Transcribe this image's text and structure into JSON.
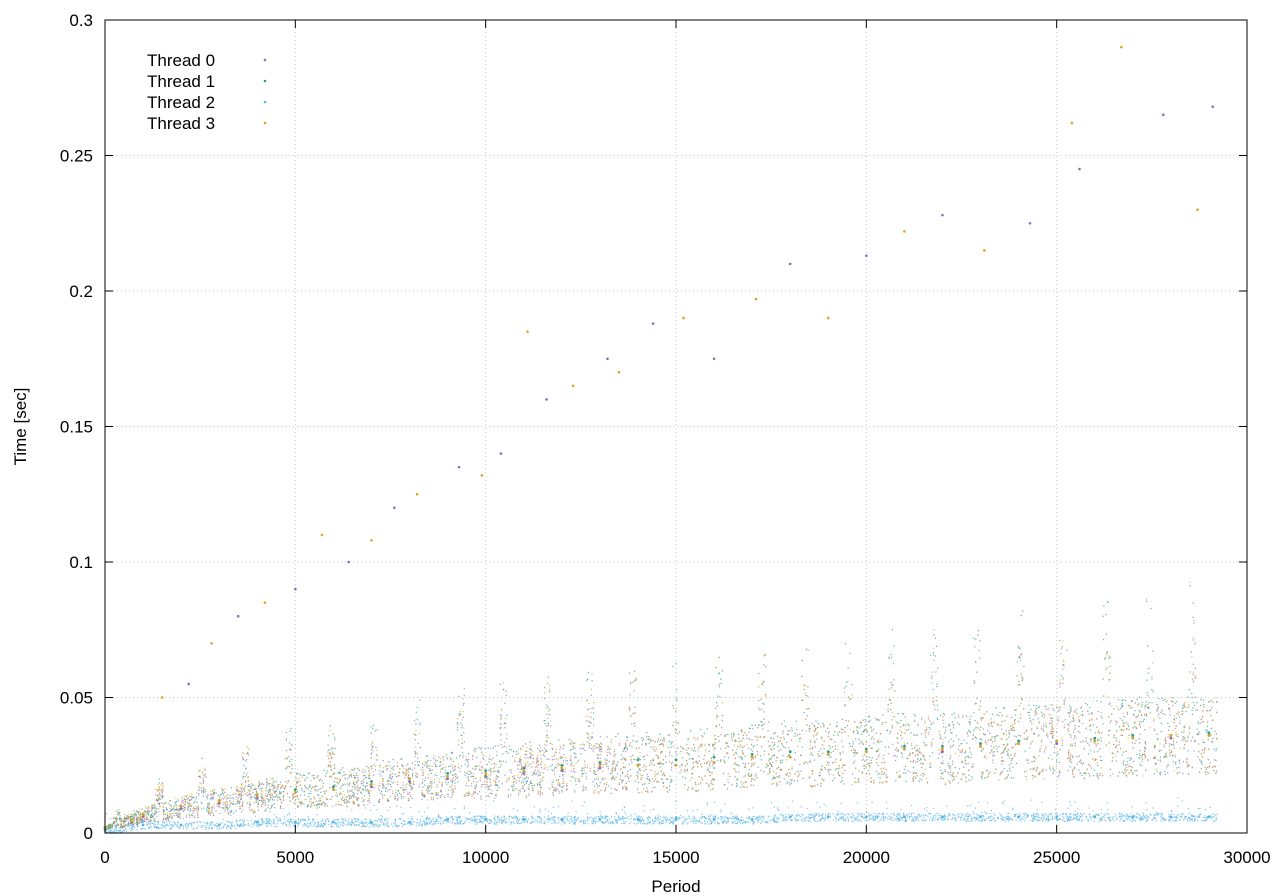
{
  "chart_data": {
    "type": "scatter",
    "xlabel": "Period",
    "ylabel": "Time [sec]",
    "xlim": [
      0,
      30000
    ],
    "ylim": [
      0,
      0.3
    ],
    "x_ticks": [
      0,
      5000,
      10000,
      15000,
      20000,
      25000,
      30000
    ],
    "x_tick_labels": [
      "0",
      "5000",
      "10000",
      "15000",
      "20000",
      "25000",
      "30000"
    ],
    "y_ticks": [
      0,
      0.05,
      0.1,
      0.15,
      0.2,
      0.25,
      0.3
    ],
    "y_tick_labels": [
      "0",
      "0.05",
      "0.1",
      "0.15",
      "0.2",
      "0.25",
      "0.3"
    ],
    "grid": true,
    "legend_position": "top-left",
    "series": [
      {
        "name": "Thread 0",
        "color": "#9467bd",
        "x": [
          0,
          1000,
          2000,
          3000,
          4000,
          5000,
          6000,
          7000,
          8000,
          9000,
          10000,
          11000,
          12000,
          13000,
          14000,
          15000,
          16000,
          17000,
          18000,
          19000,
          20000,
          21000,
          22000,
          23000,
          24000,
          25000,
          26000,
          27000,
          28000,
          29000
        ],
        "values": [
          0.002,
          0.006,
          0.009,
          0.011,
          0.013,
          0.015,
          0.016,
          0.017,
          0.019,
          0.02,
          0.021,
          0.022,
          0.023,
          0.024,
          0.025,
          0.025,
          0.026,
          0.028,
          0.028,
          0.029,
          0.03,
          0.031,
          0.03,
          0.032,
          0.033,
          0.033,
          0.034,
          0.035,
          0.035,
          0.036
        ]
      },
      {
        "name": "Thread 1",
        "color": "#2a9d8f",
        "x": [
          0,
          1000,
          2000,
          3000,
          4000,
          5000,
          6000,
          7000,
          8000,
          9000,
          10000,
          11000,
          12000,
          13000,
          14000,
          15000,
          16000,
          17000,
          18000,
          19000,
          20000,
          21000,
          22000,
          23000,
          24000,
          25000,
          26000,
          27000,
          28000,
          29000
        ],
        "values": [
          0.002,
          0.007,
          0.01,
          0.012,
          0.014,
          0.016,
          0.017,
          0.019,
          0.02,
          0.022,
          0.023,
          0.024,
          0.025,
          0.026,
          0.027,
          0.027,
          0.028,
          0.029,
          0.03,
          0.03,
          0.031,
          0.032,
          0.032,
          0.033,
          0.034,
          0.034,
          0.035,
          0.036,
          0.036,
          0.037
        ]
      },
      {
        "name": "Thread 2",
        "color": "#56b4e9",
        "x": [
          0,
          1000,
          2000,
          3000,
          4000,
          5000,
          6000,
          7000,
          8000,
          9000,
          10000,
          11000,
          12000,
          13000,
          14000,
          15000,
          16000,
          17000,
          18000,
          19000,
          20000,
          21000,
          22000,
          23000,
          24000,
          25000,
          26000,
          27000,
          28000,
          29000
        ],
        "values": [
          0.001,
          0.003,
          0.003,
          0.003,
          0.004,
          0.004,
          0.004,
          0.004,
          0.004,
          0.005,
          0.005,
          0.005,
          0.005,
          0.005,
          0.005,
          0.005,
          0.005,
          0.005,
          0.006,
          0.006,
          0.006,
          0.006,
          0.006,
          0.006,
          0.006,
          0.006,
          0.006,
          0.006,
          0.006,
          0.006
        ]
      },
      {
        "name": "Thread 3",
        "color": "#daa520",
        "x": [
          0,
          1000,
          2000,
          3000,
          4000,
          5000,
          6000,
          7000,
          8000,
          9000,
          10000,
          11000,
          12000,
          13000,
          14000,
          15000,
          16000,
          17000,
          18000,
          19000,
          20000,
          21000,
          22000,
          23000,
          24000,
          25000,
          26000,
          27000,
          28000,
          29000
        ],
        "values": [
          0.002,
          0.007,
          0.01,
          0.012,
          0.014,
          0.015,
          0.016,
          0.018,
          0.02,
          0.021,
          0.022,
          0.023,
          0.024,
          0.025,
          0.025,
          0.025,
          0.026,
          0.028,
          0.028,
          0.029,
          0.03,
          0.031,
          0.031,
          0.032,
          0.033,
          0.034,
          0.034,
          0.035,
          0.036,
          0.036
        ]
      }
    ],
    "outliers": {
      "x": [
        1500,
        2200,
        2800,
        3500,
        4200,
        5000,
        5700,
        6400,
        7000,
        7600,
        8200,
        9300,
        9900,
        10400,
        11100,
        11600,
        12300,
        13200,
        13500,
        14400,
        15200,
        16000,
        17100,
        18000,
        19000,
        20000,
        21000,
        22000,
        23100,
        24300,
        25400,
        25600,
        26700,
        27800,
        28700,
        29100
      ],
      "values": [
        0.05,
        0.055,
        0.07,
        0.08,
        0.085,
        0.09,
        0.11,
        0.1,
        0.108,
        0.12,
        0.125,
        0.135,
        0.132,
        0.14,
        0.185,
        0.16,
        0.165,
        0.175,
        0.17,
        0.188,
        0.19,
        0.175,
        0.197,
        0.21,
        0.19,
        0.213,
        0.222,
        0.228,
        0.215,
        0.225,
        0.262,
        0.245,
        0.29,
        0.265,
        0.23,
        0.268
      ]
    }
  }
}
